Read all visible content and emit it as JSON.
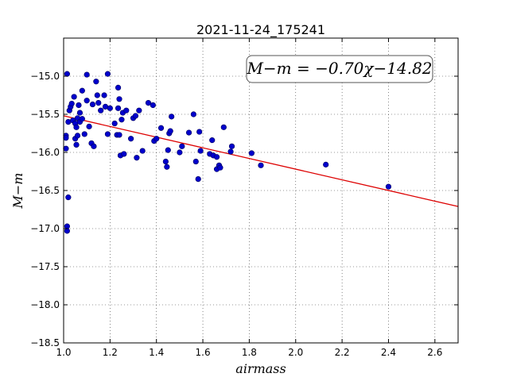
{
  "chart_data": {
    "type": "scatter",
    "title": "2021-11-24_175241",
    "xlabel": "airmass",
    "ylabel": "M−m",
    "xlim": [
      1.0,
      2.7
    ],
    "ylim": [
      -18.5,
      -14.5
    ],
    "x_ticks": [
      1.0,
      1.2,
      1.4,
      1.6,
      1.8,
      2.0,
      2.2,
      2.4,
      2.6
    ],
    "x_tick_labels": [
      "1.0",
      "1.2",
      "1.4",
      "1.6",
      "1.8",
      "2.0",
      "2.2",
      "2.4",
      "2.6"
    ],
    "y_ticks": [
      -15.0,
      -15.5,
      -16.0,
      -16.5,
      -17.0,
      -17.5,
      -18.0,
      -18.5
    ],
    "y_tick_labels": [
      "−15.0",
      "−15.5",
      "−16.0",
      "−16.5",
      "−17.0",
      "−17.5",
      "−18.0",
      "−18.5"
    ],
    "grid": true,
    "annotation": "M−m = −0.70χ−14.82",
    "point_color": "#0000cc",
    "fit_color": "#dd0000",
    "fit_line": {
      "slope": -0.7,
      "intercept": -14.82
    },
    "points": [
      [
        1.01,
        -15.78
      ],
      [
        1.01,
        -15.81
      ],
      [
        1.01,
        -15.95
      ],
      [
        1.015,
        -14.97
      ],
      [
        1.015,
        -16.97
      ],
      [
        1.015,
        -17.03
      ],
      [
        1.02,
        -15.6
      ],
      [
        1.02,
        -16.59
      ],
      [
        1.025,
        -15.45
      ],
      [
        1.03,
        -15.4
      ],
      [
        1.035,
        -15.36
      ],
      [
        1.04,
        -15.58
      ],
      [
        1.045,
        -15.27
      ],
      [
        1.05,
        -15.62
      ],
      [
        1.05,
        -15.82
      ],
      [
        1.055,
        -15.67
      ],
      [
        1.055,
        -15.9
      ],
      [
        1.06,
        -15.55
      ],
      [
        1.06,
        -15.78
      ],
      [
        1.065,
        -15.38
      ],
      [
        1.07,
        -15.48
      ],
      [
        1.07,
        -15.6
      ],
      [
        1.08,
        -15.56
      ],
      [
        1.08,
        -15.19
      ],
      [
        1.09,
        -15.76
      ],
      [
        1.1,
        -15.32
      ],
      [
        1.1,
        -14.98
      ],
      [
        1.11,
        -15.66
      ],
      [
        1.12,
        -15.88
      ],
      [
        1.125,
        -15.37
      ],
      [
        1.13,
        -15.92
      ],
      [
        1.14,
        -15.07
      ],
      [
        1.145,
        -15.25
      ],
      [
        1.15,
        -15.35
      ],
      [
        1.16,
        -15.45
      ],
      [
        1.175,
        -15.25
      ],
      [
        1.18,
        -15.4
      ],
      [
        1.19,
        -14.97
      ],
      [
        1.19,
        -15.76
      ],
      [
        1.2,
        -15.42
      ],
      [
        1.22,
        -15.62
      ],
      [
        1.23,
        -15.77
      ],
      [
        1.235,
        -15.42
      ],
      [
        1.235,
        -15.15
      ],
      [
        1.24,
        -15.3
      ],
      [
        1.24,
        -15.77
      ],
      [
        1.245,
        -16.04
      ],
      [
        1.25,
        -15.57
      ],
      [
        1.255,
        -15.48
      ],
      [
        1.26,
        -16.02
      ],
      [
        1.27,
        -15.45
      ],
      [
        1.29,
        -15.82
      ],
      [
        1.3,
        -15.55
      ],
      [
        1.31,
        -15.52
      ],
      [
        1.315,
        -16.07
      ],
      [
        1.325,
        -15.45
      ],
      [
        1.34,
        -15.98
      ],
      [
        1.365,
        -15.35
      ],
      [
        1.385,
        -15.38
      ],
      [
        1.39,
        -15.85
      ],
      [
        1.4,
        -15.82
      ],
      [
        1.42,
        -15.68
      ],
      [
        1.44,
        -16.12
      ],
      [
        1.445,
        -16.19
      ],
      [
        1.45,
        -15.97
      ],
      [
        1.455,
        -15.75
      ],
      [
        1.46,
        -15.72
      ],
      [
        1.465,
        -15.53
      ],
      [
        1.5,
        -16.0
      ],
      [
        1.51,
        -15.92
      ],
      [
        1.54,
        -15.74
      ],
      [
        1.56,
        -15.5
      ],
      [
        1.57,
        -16.12
      ],
      [
        1.58,
        -16.35
      ],
      [
        1.585,
        -15.73
      ],
      [
        1.59,
        -15.98
      ],
      [
        1.63,
        -16.02
      ],
      [
        1.64,
        -15.84
      ],
      [
        1.645,
        -16.04
      ],
      [
        1.66,
        -16.06
      ],
      [
        1.66,
        -16.22
      ],
      [
        1.67,
        -16.17
      ],
      [
        1.675,
        -16.2
      ],
      [
        1.69,
        -15.67
      ],
      [
        1.72,
        -15.99
      ],
      [
        1.725,
        -15.92
      ],
      [
        1.81,
        -16.01
      ],
      [
        1.85,
        -16.17
      ],
      [
        2.13,
        -16.16
      ],
      [
        2.4,
        -16.45
      ]
    ]
  }
}
